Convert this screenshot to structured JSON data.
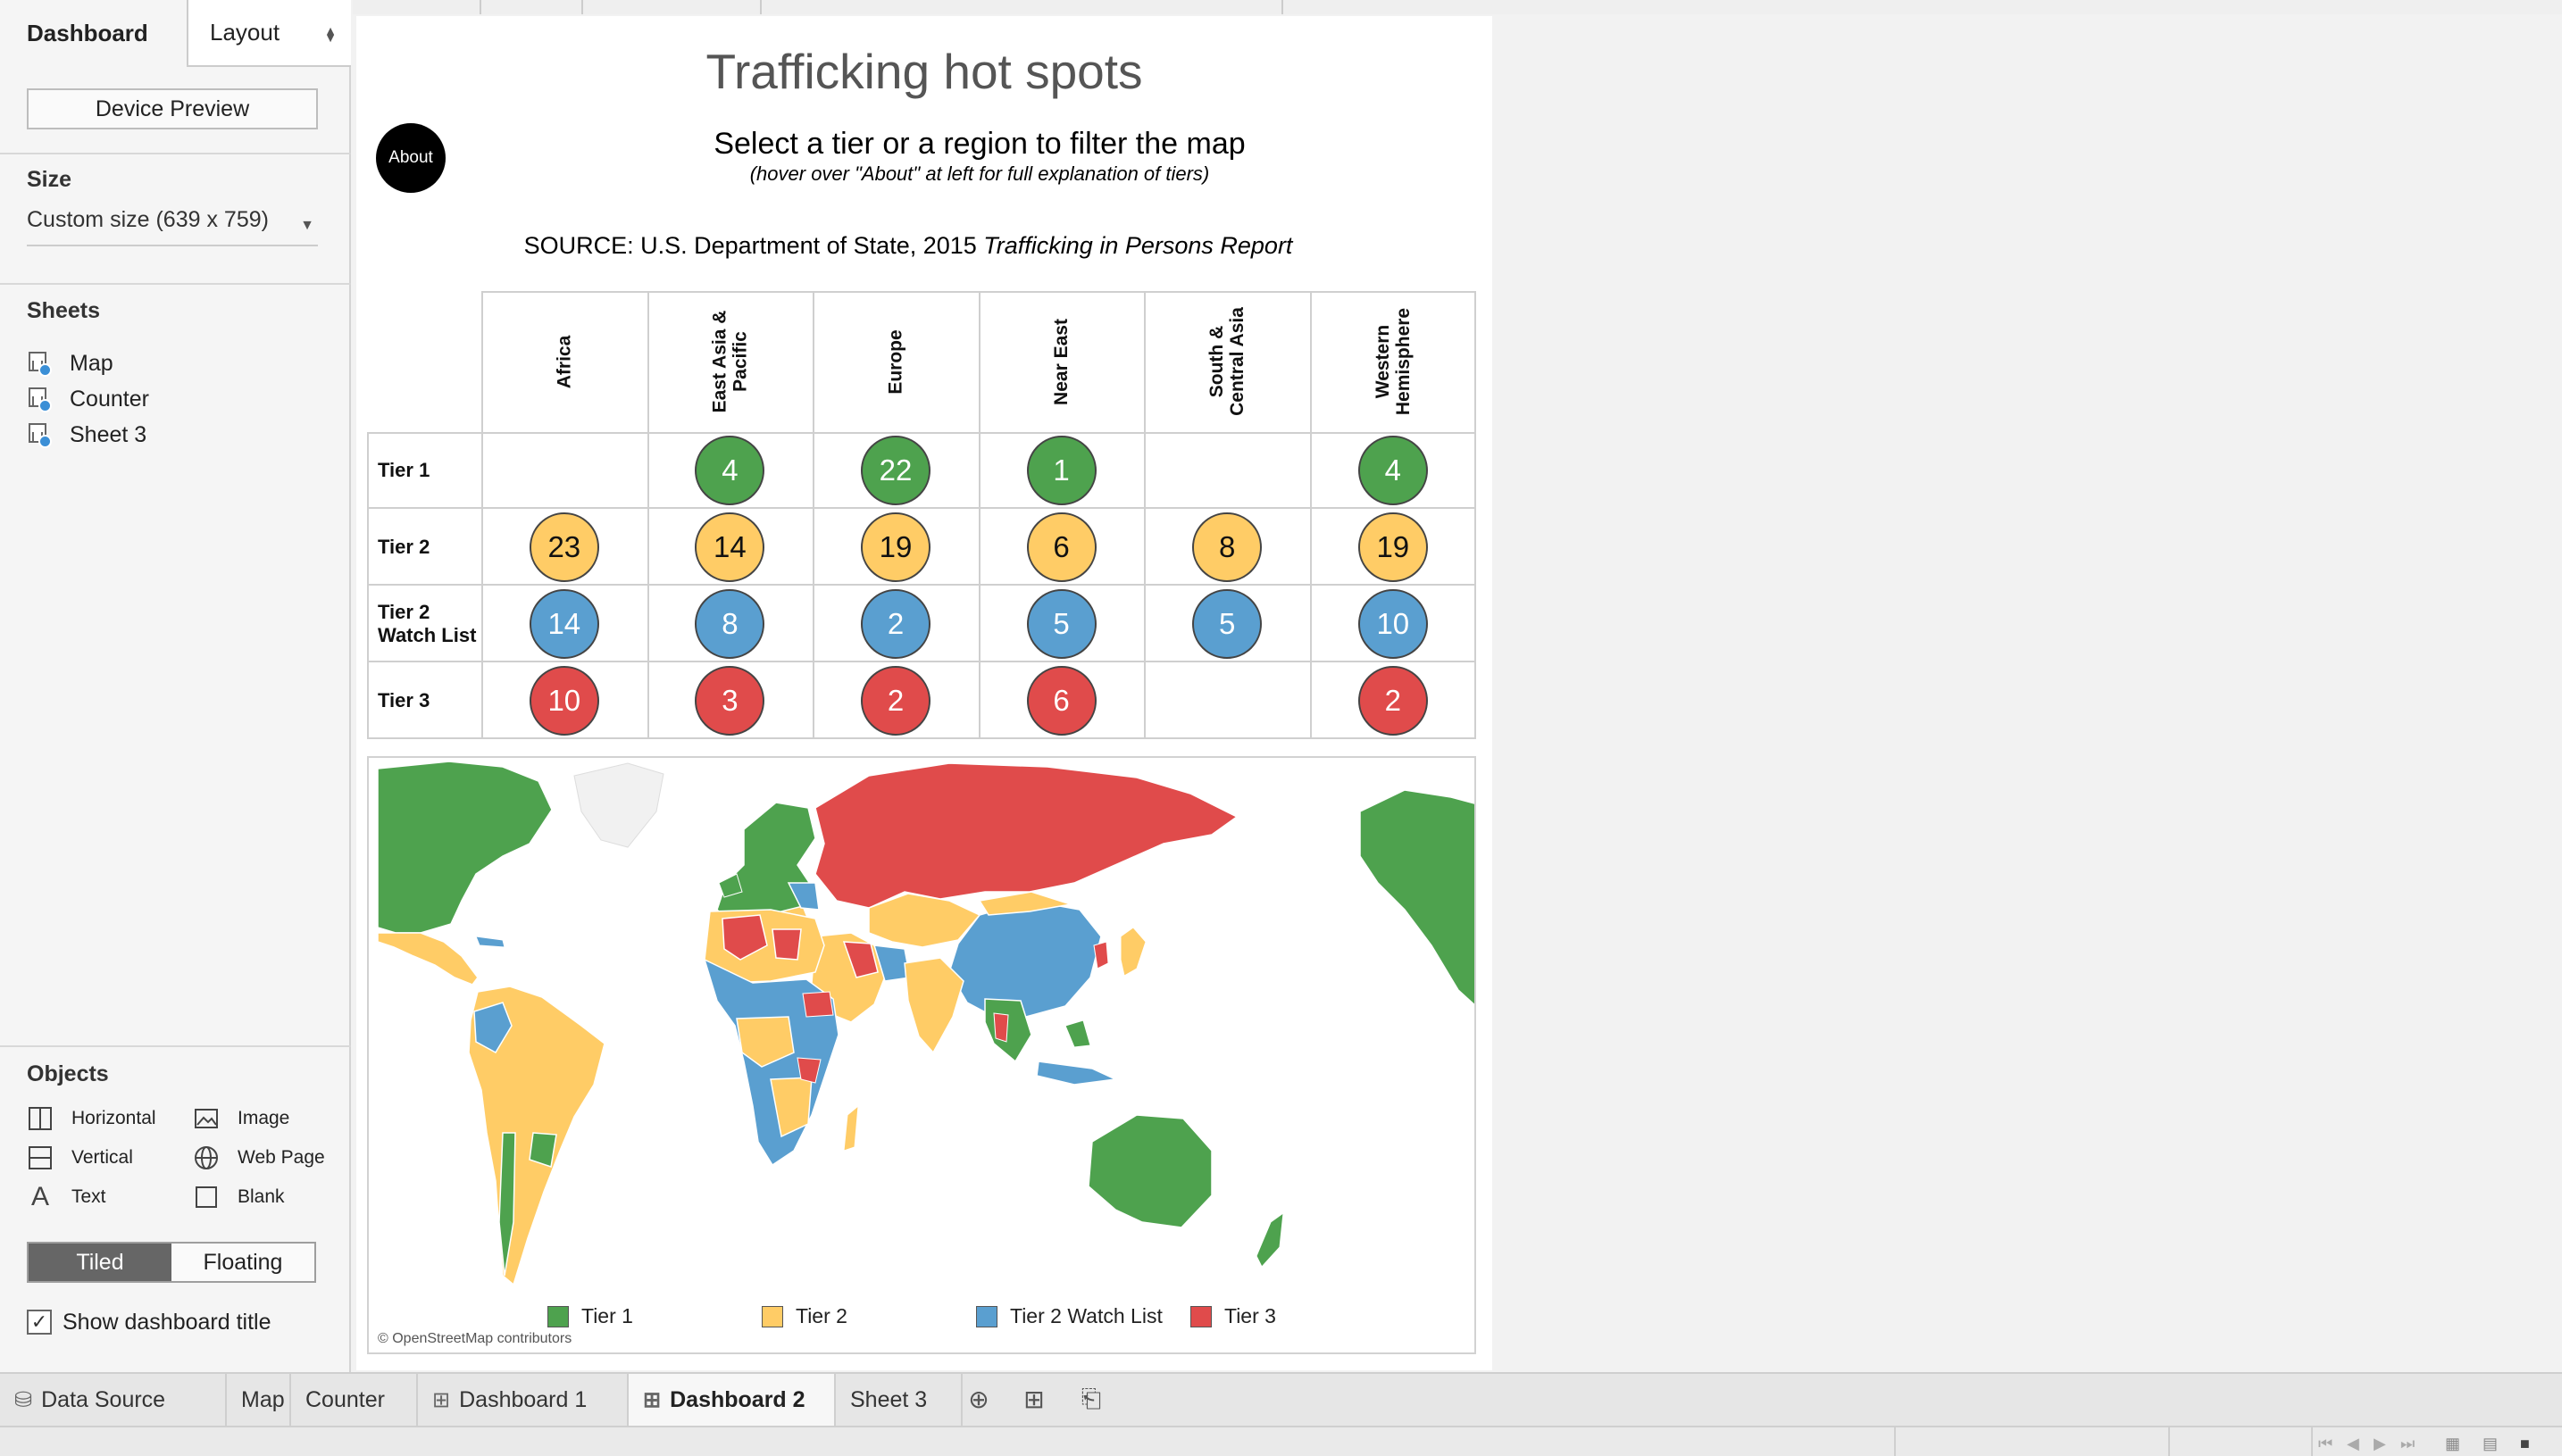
{
  "sidebar": {
    "tabs": [
      {
        "label": "Dashboard"
      },
      {
        "label": "Layout"
      }
    ],
    "device_preview_label": "Device Preview",
    "size_heading": "Size",
    "size_value": "Custom size (639 x 759)",
    "sheets_heading": "Sheets",
    "sheets": [
      {
        "label": "Map"
      },
      {
        "label": "Counter"
      },
      {
        "label": "Sheet 3"
      }
    ],
    "objects_heading": "Objects",
    "objects": [
      {
        "label": "Horizontal",
        "icon": "horizontal-container-icon"
      },
      {
        "label": "Image",
        "icon": "image-icon"
      },
      {
        "label": "Vertical",
        "icon": "vertical-container-icon"
      },
      {
        "label": "Web Page",
        "icon": "globe-icon"
      },
      {
        "label": "Text",
        "icon": "text-icon"
      },
      {
        "label": "Blank",
        "icon": "blank-icon"
      }
    ],
    "layout_mode": {
      "tiled": "Tiled",
      "floating": "Floating",
      "selected": "Tiled"
    },
    "show_title_label": "Show dashboard title",
    "show_title_checked": true
  },
  "dashboard": {
    "title": "Trafficking hot spots",
    "about_label": "About",
    "instruction": "Select a tier or a region to filter the map",
    "hint": "(hover over \"About\" at left for full explanation of tiers)",
    "source_prefix": "SOURCE: U.S. Department of State, 2015 ",
    "source_title": "Trafficking in Persons Report",
    "tiers": [
      {
        "label": "Tier 1",
        "color": "#4ea24e"
      },
      {
        "label": "Tier 2",
        "color": "#ffcc66"
      },
      {
        "label": "Tier 2\nWatch List",
        "color": "#5a9fd0"
      },
      {
        "label": "Tier 3",
        "color": "#e04b4b"
      }
    ],
    "regions": [
      {
        "label": "Africa",
        "counts": [
          null,
          23,
          14,
          10
        ]
      },
      {
        "label": "East Asia &\nPacific",
        "counts": [
          4,
          14,
          8,
          3
        ]
      },
      {
        "label": "Europe",
        "counts": [
          22,
          19,
          2,
          2
        ]
      },
      {
        "label": "Near East",
        "counts": [
          1,
          6,
          5,
          6
        ]
      },
      {
        "label": "South &\nCentral Asia",
        "counts": [
          null,
          8,
          5,
          null
        ]
      },
      {
        "label": "Western\nHemisphere",
        "counts": [
          4,
          19,
          10,
          2
        ]
      }
    ],
    "map": {
      "legend": [
        {
          "label": "Tier 1",
          "color": "#4ea24e"
        },
        {
          "label": "Tier 2",
          "color": "#ffcc66"
        },
        {
          "label": "Tier 2 Watch List",
          "color": "#5a9fd0"
        },
        {
          "label": "Tier 3",
          "color": "#e04b4b"
        }
      ],
      "attribution": "© OpenStreetMap contributors"
    }
  },
  "tabbar": {
    "tabs": [
      {
        "label": "Data Source",
        "icon": "database-icon",
        "active": false
      },
      {
        "label": "Map",
        "icon": "",
        "active": false
      },
      {
        "label": "Counter",
        "icon": "",
        "active": false
      },
      {
        "label": "Dashboard 1",
        "icon": "dashboard-icon",
        "active": false
      },
      {
        "label": "Dashboard 2",
        "icon": "dashboard-icon",
        "active": true
      },
      {
        "label": "Sheet 3",
        "icon": "",
        "active": false
      }
    ]
  },
  "chart_data": {
    "type": "table",
    "categories": [
      "Africa",
      "East Asia & Pacific",
      "Europe",
      "Near East",
      "South & Central Asia",
      "Western Hemisphere"
    ],
    "series": [
      {
        "name": "Tier 1",
        "values": [
          null,
          4,
          22,
          1,
          null,
          4
        ]
      },
      {
        "name": "Tier 2",
        "values": [
          23,
          14,
          19,
          6,
          8,
          19
        ]
      },
      {
        "name": "Tier 2 Watch List",
        "values": [
          14,
          8,
          2,
          5,
          5,
          10
        ]
      },
      {
        "name": "Tier 3",
        "values": [
          10,
          3,
          2,
          6,
          null,
          2
        ]
      }
    ],
    "title": "Trafficking hot spots"
  }
}
